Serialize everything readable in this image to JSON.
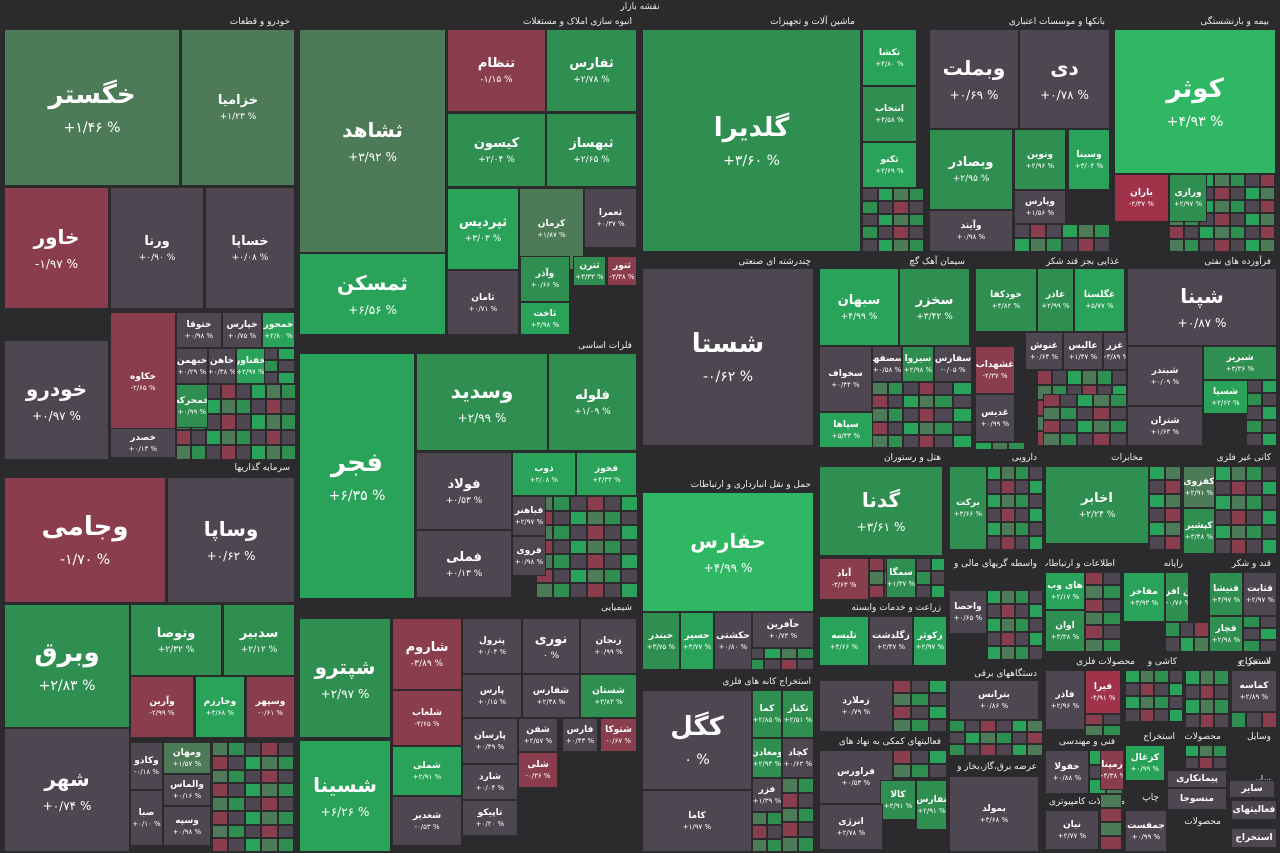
{
  "title": "نقشه بازار",
  "colors": {
    "background": "#2b2b2d",
    "positive_strong": "#30b764",
    "positive": "#2f8f51",
    "positive_weak": "#4d7a57",
    "neutral": "#4e4651",
    "negative": "#a0334a"
  },
  "sectors": [
    {
      "label": "خودرو و قطعات"
    },
    {
      "label": "انبوه سازی املاک و مستغلات"
    },
    {
      "label": "ماشین آلات و تجهیزات"
    },
    {
      "label": "بانکها و موسسات اعتباری"
    },
    {
      "label": "بیمه و بازنشستگی"
    },
    {
      "label": "فلزات اساسی"
    },
    {
      "label": "چندرشته ای صنعتی"
    },
    {
      "label": "سیمان آهک گچ"
    },
    {
      "label": "غذایی بجز قند شکر"
    },
    {
      "label": "فرآورده های نفتی"
    },
    {
      "label": "سرمایه گذاریها"
    },
    {
      "label": "حمل و نقل انبارداری و ارتباطات"
    },
    {
      "label": "هتل و رستوران"
    },
    {
      "label": "دارویی"
    },
    {
      "label": "مخابرات"
    },
    {
      "label": "کانی غیر فلزی"
    },
    {
      "label": "شیمیایی"
    },
    {
      "label": "استخراج کانه های فلزی"
    },
    {
      "label": "واسطه گریهای مالی و"
    },
    {
      "label": "اطلاعات و ارتباطات"
    },
    {
      "label": "رایانه"
    },
    {
      "label": "قند و شکر"
    },
    {
      "label": "زراعت و خدمات وابسته"
    },
    {
      "label": "دستگاههای برقی"
    },
    {
      "label": "محصولات فلزی"
    },
    {
      "label": "کاشی و"
    },
    {
      "label": "لاستیک و"
    },
    {
      "label": "استخراج"
    },
    {
      "label": "فعالیتهای کمکی به نهاد های"
    },
    {
      "label": "فنی و مهندسی"
    },
    {
      "label": "استخراج"
    },
    {
      "label": "محصولات"
    },
    {
      "label": "وسایل"
    },
    {
      "label": "عرضه برق،گاز،بخار و"
    },
    {
      "label": "محصولات کامپیوتری"
    },
    {
      "label": "چاپ"
    },
    {
      "label": "محصولات"
    },
    {
      "label": "سایر"
    }
  ],
  "tiles": [
    {
      "name": "خگستر",
      "change": "% ۱/۴۶+"
    },
    {
      "name": "خزامیا",
      "change": "% ۱/۲۳+"
    },
    {
      "name": "خاور",
      "change": "% ۱/۹۷-"
    },
    {
      "name": "ورنا",
      "change": "% ۰/۹۰+"
    },
    {
      "name": "خساپا",
      "change": "% ۰/۰۸+"
    },
    {
      "name": "خودرو",
      "change": "% ۰/۹۷+"
    },
    {
      "name": "خکاوه",
      "change": "% ۲/۶۵-"
    },
    {
      "name": "ختوقا",
      "change": "% ۰/۹۸+"
    },
    {
      "name": "خپارس",
      "change": "% ۰/۷۵+"
    },
    {
      "name": "خمحور",
      "change": "% ۲/۸۰+"
    },
    {
      "name": "خبهمن",
      "change": "% ۰/۲۹+"
    },
    {
      "name": "خاهن",
      "change": "% ۰/۳۸+"
    },
    {
      "name": "خفناور",
      "change": "% ۲/۹۷+"
    },
    {
      "name": "خمحرکه",
      "change": "% ۰/۹۹+"
    },
    {
      "name": "خصدر",
      "change": "% ۰/۱۳+"
    },
    {
      "name": "ثشاهد",
      "change": "% ۳/۹۲+"
    },
    {
      "name": "تنظام",
      "change": "% ۱/۱۵-"
    },
    {
      "name": "ثفارس",
      "change": "% ۲/۷۸+"
    },
    {
      "name": "کیسون",
      "change": "% ۲/۰۴+"
    },
    {
      "name": "ثبهساز",
      "change": "% ۲/۶۵+"
    },
    {
      "name": "ثپردیس",
      "change": "% ۳/۰۳+"
    },
    {
      "name": "کرمان",
      "change": "% ۱/۸۷+"
    },
    {
      "name": "ثعمرا",
      "change": "% ۰/۳۷+"
    },
    {
      "name": "ثمسکن",
      "change": "% ۶/۵۶+"
    },
    {
      "name": "ثامان",
      "change": "% ۰/۷۱+"
    },
    {
      "name": "وآذر",
      "change": "% ۰/۶۶+"
    },
    {
      "name": "ثترن",
      "change": "% ۳/۳۳+"
    },
    {
      "name": "ثنور",
      "change": "% ۳/۳۸-"
    },
    {
      "name": "ثاخت",
      "change": "% ۴/۹۸+"
    },
    {
      "name": "گلدیرا",
      "change": "% ۳/۶۰+"
    },
    {
      "name": "تکشا",
      "change": "% ۴/۸۰+"
    },
    {
      "name": "انتخاب",
      "change": "% ۴/۵۸+"
    },
    {
      "name": "تکنو",
      "change": "% ۲/۶۹+"
    },
    {
      "name": "وبملت",
      "change": "% ۰/۶۹+"
    },
    {
      "name": "دی",
      "change": "% ۰/۷۸+"
    },
    {
      "name": "وبصادر",
      "change": "% ۲/۹۵+"
    },
    {
      "name": "ونوین",
      "change": "% ۲/۹۶+"
    },
    {
      "name": "وسینا",
      "change": "% ۳/۰۴+"
    },
    {
      "name": "وپارس",
      "change": "% ۱/۵۶+"
    },
    {
      "name": "وآیند",
      "change": "% ۰/۹۸+"
    },
    {
      "name": "کوثر",
      "change": "% ۴/۹۳+"
    },
    {
      "name": "باران",
      "change": "% ۲/۳۷-"
    },
    {
      "name": "ورازی",
      "change": "% ۲/۹۷+"
    },
    {
      "name": "فجر",
      "change": "% ۶/۳۵+"
    },
    {
      "name": "وسدید",
      "change": "% ۲/۹۹+"
    },
    {
      "name": "فلوله",
      "change": "% ۱/۰۹+"
    },
    {
      "name": "فولاد",
      "change": "% ۰/۵۳+"
    },
    {
      "name": "ذوب",
      "change": "% ۲/۰۸+"
    },
    {
      "name": "فخوز",
      "change": "% ۴/۳۳+"
    },
    {
      "name": "فباهنر",
      "change": "% ۲/۹۷+"
    },
    {
      "name": "فملی",
      "change": "% ۰/۱۳+"
    },
    {
      "name": "فروی",
      "change": "% ۰/۹۸+"
    },
    {
      "name": "شستا",
      "change": "% ۰/۶۲-"
    },
    {
      "name": "سبهان",
      "change": "% ۴/۹۹+"
    },
    {
      "name": "سخزر",
      "change": "% ۳/۴۲+"
    },
    {
      "name": "سخواف",
      "change": "% ۰/۴۴+"
    },
    {
      "name": "سصفها",
      "change": "% ۰/۵۸+"
    },
    {
      "name": "سیزوا",
      "change": "% ۲/۹۸+"
    },
    {
      "name": "سفارس",
      "change": "% ۰/۰۵-"
    },
    {
      "name": "سپاها",
      "change": "% ۵/۳۳+"
    },
    {
      "name": "خودکفا",
      "change": "% ۴/۸۲+"
    },
    {
      "name": "غاذر",
      "change": "% ۲/۹۹+"
    },
    {
      "name": "غگلستا",
      "change": "% ۵/۷۷+"
    },
    {
      "name": "غنوش",
      "change": "% ۰/۶۴+"
    },
    {
      "name": "عالیس",
      "change": "% ۱/۴۷+"
    },
    {
      "name": "غزر",
      "change": "% ۳/۸۹+"
    },
    {
      "name": "غشهداب",
      "change": "% ۲/۳۷-"
    },
    {
      "name": "غدیس",
      "change": "% ۰/۹۹+"
    },
    {
      "name": "شپنا",
      "change": "% ۰/۸۷+"
    },
    {
      "name": "شبندر",
      "change": "% ۰/۰۹+"
    },
    {
      "name": "شبریز",
      "change": "% ۳/۳۶+"
    },
    {
      "name": "شسپا",
      "change": "% ۲/۶۲+"
    },
    {
      "name": "شتران",
      "change": "% ۱/۶۳+"
    },
    {
      "name": "وجامی",
      "change": "% ۱/۷۰-"
    },
    {
      "name": "وساپا",
      "change": "% ۰/۶۲+"
    },
    {
      "name": "وبرق",
      "change": "% ۲/۸۳+"
    },
    {
      "name": "وتوصا",
      "change": "% ۲/۳۲+"
    },
    {
      "name": "سدبیر",
      "change": "% ۲/۱۲+"
    },
    {
      "name": "وآرین",
      "change": "% ۲/۹۹-"
    },
    {
      "name": "وخارزم",
      "change": "% ۳/۶۸+"
    },
    {
      "name": "وسپهر",
      "change": "% ۰/۶۱-"
    },
    {
      "name": "شهر",
      "change": "% ۰/۷۴+"
    },
    {
      "name": "وکادو",
      "change": "% ۰/۱۸-"
    },
    {
      "name": "ومهان",
      "change": "% ۱/۵۷+"
    },
    {
      "name": "والماس",
      "change": "% ۰/۱۶+"
    },
    {
      "name": "صبا",
      "change": "% ۰/۱۰+"
    },
    {
      "name": "وسپه",
      "change": "% ۰/۹۸+"
    },
    {
      "name": "حفارس",
      "change": "% ۴/۹۹+"
    },
    {
      "name": "حآفرین",
      "change": "% ۰/۷۳+"
    },
    {
      "name": "حبندر",
      "change": "% ۳/۷۵+"
    },
    {
      "name": "حسیر",
      "change": "% ۳/۷۷+"
    },
    {
      "name": "حکشتی",
      "change": "% ۰/۸۰+"
    },
    {
      "name": "گدنا",
      "change": "% ۳/۶۱+"
    },
    {
      "name": "آباد",
      "change": "% ۳/۶۳-"
    },
    {
      "name": "سمگا",
      "change": "% ۱/۳۷+"
    },
    {
      "name": "برکت",
      "change": "% ۳/۶۶+"
    },
    {
      "name": "اخابر",
      "change": "% ۲/۲۴+"
    },
    {
      "name": "کفزوی",
      "change": "% ۲/۹۱+"
    },
    {
      "name": "کپشیر",
      "change": "% ۳/۴۸+"
    },
    {
      "name": "شپترو",
      "change": "% ۲/۹۷+"
    },
    {
      "name": "شاروم",
      "change": "% ۳/۸۹-"
    },
    {
      "name": "پترول",
      "change": "% ۰/۰۴+"
    },
    {
      "name": "نوری",
      "change": "% ۰"
    },
    {
      "name": "زنجان",
      "change": "% ۰/۹۹+"
    },
    {
      "name": "شلعاب",
      "change": "% ۳/۶۵-"
    },
    {
      "name": "پارس",
      "change": "% ۰/۱۵+"
    },
    {
      "name": "شفارس",
      "change": "% ۲/۴۸+"
    },
    {
      "name": "شستان",
      "change": "% ۳/۸۳+"
    },
    {
      "name": "شسینا",
      "change": "% ۶/۲۶+"
    },
    {
      "name": "شملی",
      "change": "% ۲/۹۱+"
    },
    {
      "name": "پارسان",
      "change": "% ۰/۴۹+"
    },
    {
      "name": "شفن",
      "change": "% ۲/۵۷+"
    },
    {
      "name": "فارس",
      "change": "% ۰/۴۳+"
    },
    {
      "name": "شتوکا",
      "change": "% ۰/۶۷-"
    },
    {
      "name": "شلی",
      "change": "% ۰/۳۶-"
    },
    {
      "name": "شارد",
      "change": "% ۰/۰۴+"
    },
    {
      "name": "شغدیر",
      "change": "% ۰/۵۳-"
    },
    {
      "name": "تاپیکو",
      "change": "% ۰/۲۰+"
    },
    {
      "name": "کگل",
      "change": "% ۰"
    },
    {
      "name": "کما",
      "change": "% ۲/۸۵+"
    },
    {
      "name": "تکنار",
      "change": "% ۲/۵۱+"
    },
    {
      "name": "ومعادن",
      "change": "% ۲/۹۳+"
    },
    {
      "name": "کچاد",
      "change": "% ۰/۶۲+"
    },
    {
      "name": "فزر",
      "change": "% ۱/۳۹+"
    },
    {
      "name": "کاما",
      "change": "% ۱/۹۷+"
    },
    {
      "name": "واحصا",
      "change": "% ۰/۶۵+"
    },
    {
      "name": "های وب",
      "change": "% ۲/۱۷+"
    },
    {
      "name": "اوان",
      "change": "% ۳/۳۸+"
    },
    {
      "name": "مفاخر",
      "change": "% ۳/۹۳+"
    },
    {
      "name": "فن افزار",
      "change": "% ۰/۷۶+"
    },
    {
      "name": "قنیشا",
      "change": "% ۳/۹۷+"
    },
    {
      "name": "قثابت",
      "change": "% ۲/۹۷+"
    },
    {
      "name": "قچار",
      "change": "% ۲/۹۸+"
    },
    {
      "name": "تلیسه",
      "change": "% ۴/۶۶+"
    },
    {
      "name": "زگلدشت",
      "change": "% ۲/۴۷+"
    },
    {
      "name": "زکوثر",
      "change": "% ۲/۹۷+"
    },
    {
      "name": "زملارد",
      "change": "% ۰/۷۹+"
    },
    {
      "name": "بترانس",
      "change": "% ۰/۸۶+"
    },
    {
      "name": "فاذر",
      "change": "% ۲/۹۶+"
    },
    {
      "name": "فیرا",
      "change": "% ۴/۹۱-"
    },
    {
      "name": "کماسه",
      "change": "% ۲/۸۹+"
    },
    {
      "name": "فراورس",
      "change": "% ۰/۵۳+"
    },
    {
      "name": "کالا",
      "change": "% ۲/۹۱+"
    },
    {
      "name": "انرژی",
      "change": "% ۲/۷۸+"
    },
    {
      "name": "تفارس",
      "change": "% ۲/۹۱+"
    },
    {
      "name": "خفولا",
      "change": "% ۰/۸۸+"
    },
    {
      "name": "رمپنا",
      "change": "% ۴/۳۸+"
    },
    {
      "name": "کزغال",
      "change": "% ۰/۹۹+"
    },
    {
      "name": "بمولد",
      "change": "% ۳/۶۸+"
    },
    {
      "name": "نیان",
      "change": "% ۲/۷۷+"
    },
    {
      "name": "جمفست",
      "change": "% ۰/۹۹+"
    },
    {
      "name": "فعالیتهای",
      "change": ""
    },
    {
      "name": "منسوجا",
      "change": ""
    },
    {
      "name": "پیمانکاری",
      "change": ""
    },
    {
      "name": "سایر",
      "change": ""
    },
    {
      "name": "استخراج",
      "change": ""
    }
  ]
}
